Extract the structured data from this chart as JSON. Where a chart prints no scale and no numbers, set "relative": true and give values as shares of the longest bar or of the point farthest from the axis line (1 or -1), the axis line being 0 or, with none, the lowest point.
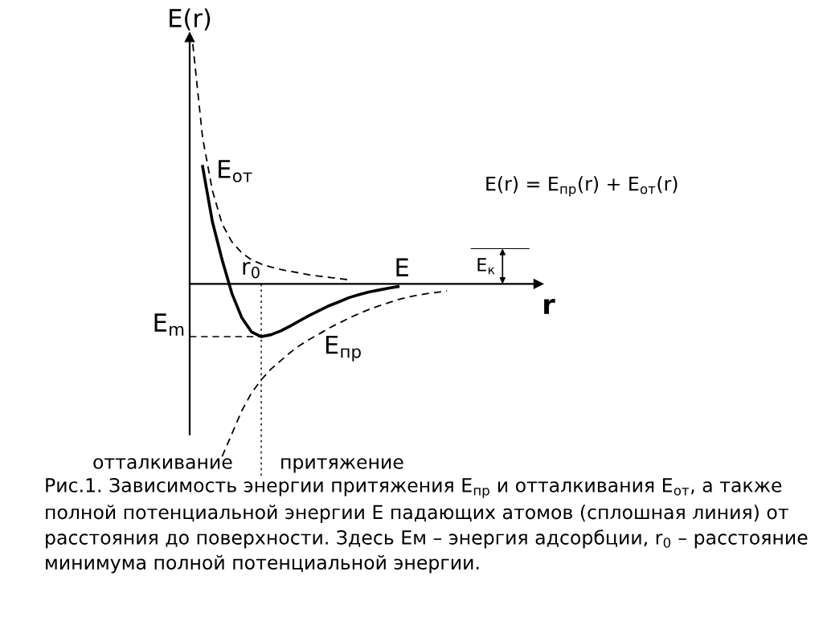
{
  "chart_data": {
    "type": "line",
    "relative": true,
    "xlabel": "r",
    "ylabel": "E(r)",
    "marker": "none",
    "categories": [
      null,
      null,
      null,
      null,
      null,
      null,
      null,
      null,
      null,
      null,
      null,
      null,
      null,
      null,
      null,
      null,
      null,
      null,
      null,
      null,
      null,
      null,
      null,
      null,
      null,
      null,
      null
    ],
    "series": [
      {
        "name": "E$_{от}$",
        "color": "#000000",
        "line_style": "dashed",
        "values": [
          1.0,
          0.61,
          0.39,
          0.25,
          0.175,
          0.13,
          0.1,
          0.083,
          0.07,
          0.06,
          0.052,
          0.045,
          0.037,
          0.032,
          0.027,
          0.022,
          0.017,
          null,
          null,
          null,
          null,
          null,
          null,
          null,
          null,
          null,
          null
        ]
      },
      {
        "name": "E",
        "color": "#000000",
        "line_style": "solid",
        "values": [
          null,
          0.49,
          0.26,
          0.1,
          -0.04,
          -0.14,
          -0.2,
          -0.22,
          -0.212,
          -0.196,
          -0.175,
          -0.152,
          -0.13,
          -0.11,
          -0.09,
          -0.074,
          -0.057,
          -0.045,
          -0.034,
          -0.026,
          -0.018,
          -0.011,
          null,
          null,
          null,
          null,
          null
        ]
      },
      {
        "name": "E$_{пр}$",
        "color": "#000000",
        "line_style": "dashed",
        "values": [
          null,
          null,
          null,
          -0.72,
          -0.625,
          -0.53,
          -0.455,
          -0.4,
          -0.355,
          -0.32,
          -0.285,
          -0.255,
          -0.23,
          -0.207,
          -0.183,
          -0.163,
          -0.142,
          -0.124,
          -0.107,
          -0.092,
          -0.079,
          -0.065,
          -0.055,
          -0.047,
          -0.04,
          -0.035,
          -0.03
        ]
      }
    ],
    "ref_lines": [
      {
        "axis": "y",
        "value": -0.22,
        "label": "E$_{m}$",
        "line_style": "dashed",
        "color": "#000000"
      }
    ],
    "annotations": [
      "E$_{к}$",
      "r$_{0}$",
      "E(r) = E$_{пр}$(r) + E$_{от}$(r)",
      "отталкивание",
      "притяжение",
      "Рис.1. Зависимость энергии притяжения E$_{пр}$ и отталкивания E$_{от}$, а также полной потенциальной энергии E падающих атомов (сплошная линия) от расстояния до поверхности. Здесь Ем – энергия адсорбции, r$_{0}$ – расстояние минимума полной потенциальной энергии."
    ]
  }
}
